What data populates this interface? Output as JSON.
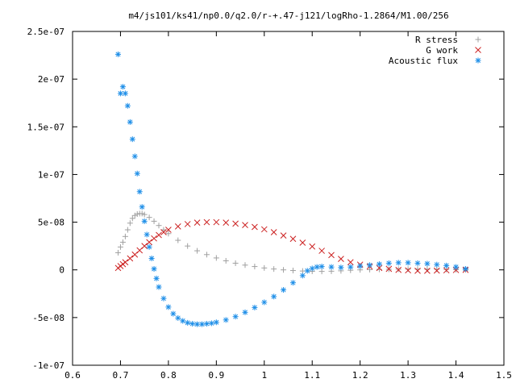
{
  "chart_data": {
    "type": "scatter",
    "title": "m4/js101/ks41/np0.0/q2.0/r-+.47-j121/logRho-1.2864/M1.00/256",
    "xlabel": "",
    "ylabel": "",
    "xlim": [
      0.6,
      1.5
    ],
    "ylim": [
      -1e-07,
      2.5e-07
    ],
    "grid": false,
    "legend_position": "top-right",
    "x_ticks": [
      {
        "value": 0.6,
        "label": "0.6"
      },
      {
        "value": 0.7,
        "label": "0.7"
      },
      {
        "value": 0.8,
        "label": "0.8"
      },
      {
        "value": 0.9,
        "label": "0.9"
      },
      {
        "value": 1.0,
        "label": "1"
      },
      {
        "value": 1.1,
        "label": "1.1"
      },
      {
        "value": 1.2,
        "label": "1.2"
      },
      {
        "value": 1.3,
        "label": "1.3"
      },
      {
        "value": 1.4,
        "label": "1.4"
      },
      {
        "value": 1.5,
        "label": "1.5"
      }
    ],
    "y_ticks": [
      {
        "value": 2.5e-07,
        "label": "2.5e-07"
      },
      {
        "value": 2e-07,
        "label": "2e-07"
      },
      {
        "value": 1.5e-07,
        "label": "1.5e-07"
      },
      {
        "value": 1e-07,
        "label": "1e-07"
      },
      {
        "value": 5e-08,
        "label": "5e-08"
      },
      {
        "value": 0,
        "label": "0"
      },
      {
        "value": -5e-08,
        "label": "-5e-08"
      },
      {
        "value": -1e-07,
        "label": "-1e-07"
      }
    ],
    "series": [
      {
        "name": "R stress",
        "marker": "plus",
        "color": "#a0a0a0",
        "points": [
          [
            0.695,
            1.8e-08
          ],
          [
            0.7,
            2.4e-08
          ],
          [
            0.705,
            2.9e-08
          ],
          [
            0.71,
            3.5e-08
          ],
          [
            0.715,
            4.2e-08
          ],
          [
            0.72,
            4.9e-08
          ],
          [
            0.725,
            5.4e-08
          ],
          [
            0.73,
            5.7e-08
          ],
          [
            0.735,
            5.85e-08
          ],
          [
            0.74,
            5.9e-08
          ],
          [
            0.745,
            5.9e-08
          ],
          [
            0.75,
            5.8e-08
          ],
          [
            0.76,
            5.5e-08
          ],
          [
            0.77,
            5.1e-08
          ],
          [
            0.78,
            4.65e-08
          ],
          [
            0.79,
            4.2e-08
          ],
          [
            0.8,
            3.8e-08
          ],
          [
            0.82,
            3.1e-08
          ],
          [
            0.84,
            2.5e-08
          ],
          [
            0.86,
            2e-08
          ],
          [
            0.88,
            1.6e-08
          ],
          [
            0.9,
            1.25e-08
          ],
          [
            0.92,
            9.5e-09
          ],
          [
            0.94,
            7e-09
          ],
          [
            0.96,
            5e-09
          ],
          [
            0.98,
            3.5e-09
          ],
          [
            1.0,
            2e-09
          ],
          [
            1.02,
            9e-10
          ],
          [
            1.04,
            0
          ],
          [
            1.06,
            -7e-10
          ],
          [
            1.08,
            -1.2e-09
          ],
          [
            1.1,
            -1.5e-09
          ],
          [
            1.12,
            -1.6e-09
          ],
          [
            1.14,
            -1.4e-09
          ],
          [
            1.16,
            -1e-09
          ],
          [
            1.18,
            -4e-10
          ],
          [
            1.2,
            0
          ],
          [
            1.22,
            3e-10
          ],
          [
            1.24,
            5e-10
          ],
          [
            1.26,
            6e-10
          ],
          [
            1.28,
            7e-10
          ],
          [
            1.3,
            8e-10
          ],
          [
            1.32,
            8e-10
          ],
          [
            1.34,
            7e-10
          ],
          [
            1.36,
            6e-10
          ],
          [
            1.38,
            4e-10
          ],
          [
            1.4,
            2e-10
          ],
          [
            1.42,
            0
          ]
        ]
      },
      {
        "name": "G work",
        "marker": "cross",
        "color": "#cc2222",
        "points": [
          [
            0.695,
            2e-09
          ],
          [
            0.7,
            4e-09
          ],
          [
            0.705,
            6e-09
          ],
          [
            0.71,
            8e-09
          ],
          [
            0.72,
            1.2e-08
          ],
          [
            0.73,
            1.6e-08
          ],
          [
            0.74,
            2.05e-08
          ],
          [
            0.75,
            2.5e-08
          ],
          [
            0.76,
            2.9e-08
          ],
          [
            0.77,
            3.3e-08
          ],
          [
            0.78,
            3.65e-08
          ],
          [
            0.79,
            3.95e-08
          ],
          [
            0.8,
            4.2e-08
          ],
          [
            0.82,
            4.55e-08
          ],
          [
            0.84,
            4.8e-08
          ],
          [
            0.86,
            4.95e-08
          ],
          [
            0.88,
            5e-08
          ],
          [
            0.9,
            5e-08
          ],
          [
            0.92,
            4.95e-08
          ],
          [
            0.94,
            4.85e-08
          ],
          [
            0.96,
            4.7e-08
          ],
          [
            0.98,
            4.5e-08
          ],
          [
            1.0,
            4.25e-08
          ],
          [
            1.02,
            3.95e-08
          ],
          [
            1.04,
            3.6e-08
          ],
          [
            1.06,
            3.25e-08
          ],
          [
            1.08,
            2.85e-08
          ],
          [
            1.1,
            2.45e-08
          ],
          [
            1.12,
            2e-08
          ],
          [
            1.14,
            1.55e-08
          ],
          [
            1.16,
            1.15e-08
          ],
          [
            1.18,
            8e-09
          ],
          [
            1.2,
            5.5e-09
          ],
          [
            1.22,
            3.5e-09
          ],
          [
            1.24,
            2e-09
          ],
          [
            1.26,
            1e-09
          ],
          [
            1.28,
            0
          ],
          [
            1.3,
            -5e-10
          ],
          [
            1.32,
            -1e-09
          ],
          [
            1.34,
            -1e-09
          ],
          [
            1.36,
            -8e-10
          ],
          [
            1.38,
            -5e-10
          ],
          [
            1.4,
            -2e-10
          ],
          [
            1.42,
            0
          ]
        ]
      },
      {
        "name": "Acoustic flux",
        "marker": "star",
        "color": "#1f8fe8",
        "points": [
          [
            0.695,
            2.26e-07
          ],
          [
            0.7,
            1.85e-07
          ],
          [
            0.705,
            1.92e-07
          ],
          [
            0.71,
            1.85e-07
          ],
          [
            0.715,
            1.72e-07
          ],
          [
            0.72,
            1.55e-07
          ],
          [
            0.725,
            1.37e-07
          ],
          [
            0.73,
            1.19e-07
          ],
          [
            0.735,
            1.01e-07
          ],
          [
            0.74,
            8.2e-08
          ],
          [
            0.745,
            6.6e-08
          ],
          [
            0.75,
            5.1e-08
          ],
          [
            0.755,
            3.7e-08
          ],
          [
            0.76,
            2.4e-08
          ],
          [
            0.765,
            1.2e-08
          ],
          [
            0.77,
            1e-09
          ],
          [
            0.775,
            -9e-09
          ],
          [
            0.78,
            -1.8e-08
          ],
          [
            0.79,
            -3e-08
          ],
          [
            0.8,
            -3.9e-08
          ],
          [
            0.81,
            -4.6e-08
          ],
          [
            0.82,
            -5.05e-08
          ],
          [
            0.83,
            -5.35e-08
          ],
          [
            0.84,
            -5.55e-08
          ],
          [
            0.85,
            -5.65e-08
          ],
          [
            0.86,
            -5.7e-08
          ],
          [
            0.87,
            -5.7e-08
          ],
          [
            0.88,
            -5.65e-08
          ],
          [
            0.89,
            -5.6e-08
          ],
          [
            0.9,
            -5.5e-08
          ],
          [
            0.92,
            -5.25e-08
          ],
          [
            0.94,
            -4.9e-08
          ],
          [
            0.96,
            -4.45e-08
          ],
          [
            0.98,
            -3.95e-08
          ],
          [
            1.0,
            -3.4e-08
          ],
          [
            1.02,
            -2.8e-08
          ],
          [
            1.04,
            -2.1e-08
          ],
          [
            1.06,
            -1.35e-08
          ],
          [
            1.08,
            -6e-09
          ],
          [
            1.09,
            -1e-09
          ],
          [
            1.1,
            1.5e-09
          ],
          [
            1.11,
            3e-09
          ],
          [
            1.12,
            3.5e-09
          ],
          [
            1.14,
            3e-09
          ],
          [
            1.16,
            2.5e-09
          ],
          [
            1.18,
            3e-09
          ],
          [
            1.2,
            4e-09
          ],
          [
            1.22,
            5e-09
          ],
          [
            1.24,
            6e-09
          ],
          [
            1.26,
            7e-09
          ],
          [
            1.28,
            7.5e-09
          ],
          [
            1.3,
            7.5e-09
          ],
          [
            1.32,
            7e-09
          ],
          [
            1.34,
            6.5e-09
          ],
          [
            1.36,
            5.5e-09
          ],
          [
            1.38,
            4.5e-09
          ],
          [
            1.4,
            3e-09
          ],
          [
            1.42,
            1e-09
          ]
        ]
      }
    ]
  }
}
